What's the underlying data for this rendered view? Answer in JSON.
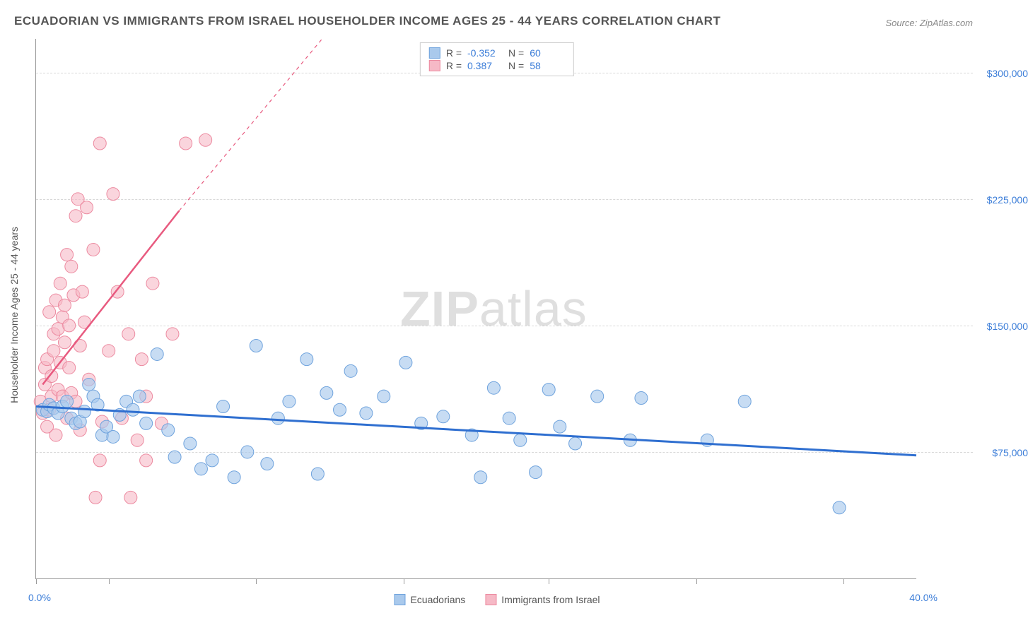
{
  "title": "ECUADORIAN VS IMMIGRANTS FROM ISRAEL HOUSEHOLDER INCOME AGES 25 - 44 YEARS CORRELATION CHART",
  "source": "Source: ZipAtlas.com",
  "watermark_bold": "ZIP",
  "watermark_light": "atlas",
  "y_axis_title": "Householder Income Ages 25 - 44 years",
  "xlim": [
    0,
    40
  ],
  "ylim": [
    0,
    320000
  ],
  "x_tick_positions": [
    0,
    3.3,
    10,
    16.7,
    23.3,
    30,
    36.7
  ],
  "x_min_label": "0.0%",
  "x_max_label": "40.0%",
  "y_gridlines": [
    75000,
    150000,
    225000,
    300000
  ],
  "y_labels": [
    "$75,000",
    "$150,000",
    "$225,000",
    "$300,000"
  ],
  "series": {
    "ecuadorians": {
      "label": "Ecuadorians",
      "fill": "#a9c9ec",
      "stroke": "#6fa3dd",
      "line_color": "#2f6fd0",
      "opacity": 0.65,
      "marker_radius": 9,
      "R": "-0.352",
      "N": "60",
      "trend": {
        "x1": 0,
        "y1": 102000,
        "x2": 40,
        "y2": 73000
      },
      "points": [
        [
          0.3,
          100000
        ],
        [
          0.5,
          99000
        ],
        [
          0.6,
          103000
        ],
        [
          0.8,
          101000
        ],
        [
          1.0,
          98000
        ],
        [
          1.2,
          102000
        ],
        [
          1.4,
          105000
        ],
        [
          1.6,
          95000
        ],
        [
          1.8,
          92000
        ],
        [
          2.0,
          93000
        ],
        [
          2.2,
          99000
        ],
        [
          2.4,
          115000
        ],
        [
          2.6,
          108000
        ],
        [
          2.8,
          103000
        ],
        [
          3.0,
          85000
        ],
        [
          3.2,
          90000
        ],
        [
          3.5,
          84000
        ],
        [
          3.8,
          97000
        ],
        [
          4.1,
          105000
        ],
        [
          4.4,
          100000
        ],
        [
          4.7,
          108000
        ],
        [
          5.0,
          92000
        ],
        [
          5.5,
          133000
        ],
        [
          6.0,
          88000
        ],
        [
          6.3,
          72000
        ],
        [
          7.0,
          80000
        ],
        [
          7.5,
          65000
        ],
        [
          8.0,
          70000
        ],
        [
          8.5,
          102000
        ],
        [
          9.0,
          60000
        ],
        [
          9.6,
          75000
        ],
        [
          10.0,
          138000
        ],
        [
          10.5,
          68000
        ],
        [
          11.0,
          95000
        ],
        [
          11.5,
          105000
        ],
        [
          12.3,
          130000
        ],
        [
          12.8,
          62000
        ],
        [
          13.2,
          110000
        ],
        [
          13.8,
          100000
        ],
        [
          14.3,
          123000
        ],
        [
          15.0,
          98000
        ],
        [
          15.8,
          108000
        ],
        [
          16.8,
          128000
        ],
        [
          17.5,
          92000
        ],
        [
          18.5,
          96000
        ],
        [
          19.8,
          85000
        ],
        [
          20.2,
          60000
        ],
        [
          20.8,
          113000
        ],
        [
          21.5,
          95000
        ],
        [
          22.0,
          82000
        ],
        [
          22.7,
          63000
        ],
        [
          23.3,
          112000
        ],
        [
          23.8,
          90000
        ],
        [
          24.5,
          80000
        ],
        [
          25.5,
          108000
        ],
        [
          27.0,
          82000
        ],
        [
          27.5,
          107000
        ],
        [
          30.5,
          82000
        ],
        [
          32.2,
          105000
        ],
        [
          36.5,
          42000
        ]
      ]
    },
    "israel": {
      "label": "Immigrants from Israel",
      "fill": "#f6b9c6",
      "stroke": "#ec8aa0",
      "line_color": "#e85a7f",
      "opacity": 0.6,
      "marker_radius": 9,
      "R": "0.387",
      "N": "58",
      "trend_solid": {
        "x1": 0.3,
        "y1": 115000,
        "x2": 6.5,
        "y2": 218000
      },
      "trend_dashed": {
        "x1": 6.5,
        "y1": 218000,
        "x2": 13.0,
        "y2": 320000
      },
      "points": [
        [
          0.2,
          105000
        ],
        [
          0.3,
          98000
        ],
        [
          0.4,
          115000
        ],
        [
          0.4,
          125000
        ],
        [
          0.5,
          90000
        ],
        [
          0.5,
          130000
        ],
        [
          0.6,
          100000
        ],
        [
          0.6,
          158000
        ],
        [
          0.7,
          108000
        ],
        [
          0.7,
          120000
        ],
        [
          0.8,
          145000
        ],
        [
          0.8,
          135000
        ],
        [
          0.9,
          85000
        ],
        [
          0.9,
          165000
        ],
        [
          1.0,
          112000
        ],
        [
          1.0,
          148000
        ],
        [
          1.1,
          128000
        ],
        [
          1.1,
          175000
        ],
        [
          1.2,
          155000
        ],
        [
          1.2,
          108000
        ],
        [
          1.3,
          162000
        ],
        [
          1.3,
          140000
        ],
        [
          1.4,
          95000
        ],
        [
          1.4,
          192000
        ],
        [
          1.5,
          150000
        ],
        [
          1.5,
          125000
        ],
        [
          1.6,
          185000
        ],
        [
          1.6,
          110000
        ],
        [
          1.7,
          168000
        ],
        [
          1.8,
          105000
        ],
        [
          1.8,
          215000
        ],
        [
          1.9,
          225000
        ],
        [
          2.0,
          138000
        ],
        [
          2.0,
          88000
        ],
        [
          2.1,
          170000
        ],
        [
          2.2,
          152000
        ],
        [
          2.3,
          220000
        ],
        [
          2.4,
          118000
        ],
        [
          2.6,
          195000
        ],
        [
          2.7,
          48000
        ],
        [
          2.9,
          70000
        ],
        [
          2.9,
          258000
        ],
        [
          3.0,
          93000
        ],
        [
          3.3,
          135000
        ],
        [
          3.5,
          228000
        ],
        [
          3.7,
          170000
        ],
        [
          3.9,
          95000
        ],
        [
          4.2,
          145000
        ],
        [
          4.3,
          48000
        ],
        [
          4.6,
          82000
        ],
        [
          4.8,
          130000
        ],
        [
          5.0,
          108000
        ],
        [
          5.3,
          175000
        ],
        [
          5.7,
          92000
        ],
        [
          6.2,
          145000
        ],
        [
          6.8,
          258000
        ],
        [
          7.7,
          260000
        ],
        [
          5.0,
          70000
        ]
      ]
    }
  },
  "colors": {
    "title": "#555555",
    "axis": "#999999",
    "grid": "#d8d8d8",
    "label_blue": "#3b7dd8",
    "text": "#555555"
  }
}
